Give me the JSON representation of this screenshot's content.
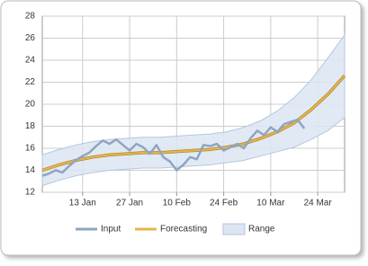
{
  "chart_data": {
    "type": "line",
    "xlim": [
      0,
      90
    ],
    "xticks": [
      {
        "value": 12,
        "label": "13 Jan"
      },
      {
        "value": 26,
        "label": "27 Jan"
      },
      {
        "value": 40,
        "label": "10 Feb"
      },
      {
        "value": 54,
        "label": "24 Feb"
      },
      {
        "value": 68,
        "label": "10 Mar"
      },
      {
        "value": 82,
        "label": "24 Mar"
      }
    ],
    "ylim": [
      12,
      28
    ],
    "yticks": [
      12,
      14,
      16,
      18,
      20,
      22,
      24,
      26,
      28
    ],
    "grid": true,
    "legend": "bottom",
    "series": [
      {
        "name": "Input",
        "color": "#8fa5c2",
        "x": [
          0,
          2,
          4,
          6,
          8,
          10,
          12,
          14,
          16,
          18,
          20,
          22,
          24,
          26,
          28,
          30,
          32,
          34,
          36,
          38,
          40,
          42,
          44,
          46,
          48,
          50,
          52,
          54,
          56,
          58,
          60,
          62,
          64,
          66,
          68,
          70,
          72,
          74,
          76,
          78
        ],
        "values": [
          13.5,
          13.7,
          14.0,
          13.8,
          14.4,
          14.9,
          15.3,
          15.6,
          16.2,
          16.7,
          16.4,
          16.8,
          16.3,
          15.8,
          16.4,
          16.1,
          15.5,
          16.3,
          15.2,
          14.8,
          14.0,
          14.5,
          15.2,
          15.0,
          16.3,
          16.2,
          16.4,
          15.8,
          16.1,
          16.4,
          16.0,
          16.9,
          17.6,
          17.2,
          17.9,
          17.5,
          18.2,
          18.4,
          18.6,
          17.8
        ]
      },
      {
        "name": "Forecasting",
        "color": "#e8b44a",
        "x": [
          0,
          5,
          10,
          15,
          20,
          25,
          30,
          35,
          40,
          45,
          50,
          55,
          60,
          65,
          70,
          75,
          80,
          85,
          90
        ],
        "values": [
          14.0,
          14.5,
          14.9,
          15.2,
          15.4,
          15.5,
          15.6,
          15.6,
          15.7,
          15.8,
          15.9,
          16.1,
          16.4,
          16.9,
          17.5,
          18.3,
          19.5,
          20.9,
          22.6
        ]
      },
      {
        "name": "Range",
        "color": "#dce6f2",
        "x": [
          0,
          5,
          10,
          15,
          20,
          25,
          30,
          35,
          40,
          45,
          50,
          55,
          60,
          65,
          70,
          75,
          80,
          85,
          90
        ],
        "low": [
          12.6,
          13.1,
          13.5,
          13.8,
          14.0,
          14.1,
          14.2,
          14.2,
          14.3,
          14.4,
          14.5,
          14.7,
          14.9,
          15.3,
          15.7,
          16.1,
          16.8,
          17.6,
          18.8
        ],
        "high": [
          15.4,
          15.9,
          16.3,
          16.6,
          16.8,
          16.9,
          17.0,
          17.0,
          17.1,
          17.2,
          17.3,
          17.5,
          17.9,
          18.5,
          19.4,
          20.6,
          22.2,
          24.2,
          26.3
        ]
      }
    ]
  }
}
